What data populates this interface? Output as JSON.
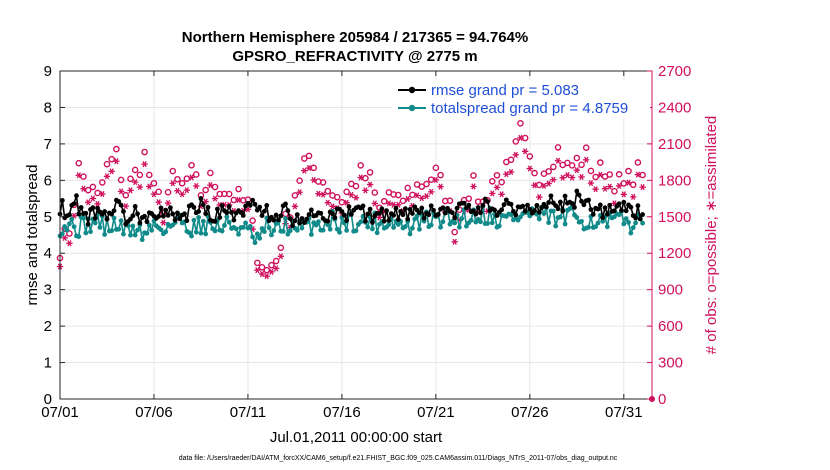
{
  "chart_data": {
    "type": "line",
    "title_line1": "Northern Hemisphere 205984 / 217365 = 94.764%",
    "title_line2": "GPSRO_REFRACTIVITY @ 2775 m",
    "xlabel": "Jul.01,2011 00:00:00 start",
    "ylabel_left": "rmse and totalspread",
    "ylabel_right": "# of obs: o=possible; ∗=assimilated",
    "footer": "data file: /Users/raeder/DAI/ATM_forcXX/CAM6_setup/f.e21.FHIST_BGC.f09_025.CAM6assim.011/Diags_NTrS_2011-07/obs_diag_output.nc",
    "xlim": [
      0,
      31.5
    ],
    "ylim_left": [
      0,
      9
    ],
    "ylim_right": [
      0,
      2700
    ],
    "x_ticks": [
      0,
      5,
      10,
      15,
      20,
      25,
      30
    ],
    "x_tick_labels": [
      "07/01",
      "07/06",
      "07/11",
      "07/16",
      "07/21",
      "07/26",
      "07/31"
    ],
    "y_ticks_left": [
      0,
      1,
      2,
      3,
      4,
      5,
      6,
      7,
      8,
      9
    ],
    "y_tick_labels_left": [
      "0",
      "1",
      "2",
      "3",
      "4",
      "5",
      "6",
      "7",
      "8",
      "9"
    ],
    "y_ticks_right": [
      0,
      300,
      600,
      900,
      1200,
      1500,
      1800,
      2100,
      2400,
      2700
    ],
    "y_tick_labels_right": [
      "0",
      "300",
      "600",
      "900",
      "1200",
      "1500",
      "1800",
      "2100",
      "2400",
      "2700"
    ],
    "grid": true,
    "legend_position": "top-right",
    "series": [
      {
        "name": "rmse grand pr = 5.083",
        "color": "#000000",
        "axis": "left",
        "x_start": 0,
        "x_step": 0.125,
        "keypoints": [
          [
            0,
            5.3
          ],
          [
            0.4,
            5.1
          ],
          [
            0.8,
            5.4
          ],
          [
            1.2,
            5.2
          ],
          [
            1.5,
            5.0
          ],
          [
            2,
            5.2
          ],
          [
            2.5,
            5.1
          ],
          [
            3,
            5.3
          ],
          [
            3.5,
            5.0
          ],
          [
            4,
            5.1
          ],
          [
            4.5,
            5.0
          ],
          [
            5,
            5.2
          ],
          [
            5.5,
            5.0
          ],
          [
            6,
            5.1
          ],
          [
            6.5,
            5.0
          ],
          [
            7,
            5.2
          ],
          [
            7.5,
            5.3
          ],
          [
            8,
            5.0
          ],
          [
            8.5,
            5.1
          ],
          [
            9,
            5.2
          ],
          [
            9.5,
            5.0
          ],
          [
            10,
            5.2
          ],
          [
            10.5,
            5.4
          ],
          [
            11,
            5.1
          ],
          [
            11.5,
            5.0
          ],
          [
            12,
            5.2
          ],
          [
            12.5,
            4.9
          ],
          [
            13,
            5.0
          ],
          [
            13.5,
            5.1
          ],
          [
            14,
            5.0
          ],
          [
            14.5,
            5.1
          ],
          [
            15,
            5.0
          ],
          [
            15.5,
            5.1
          ],
          [
            16,
            5.2
          ],
          [
            16.5,
            5.0
          ],
          [
            17,
            5.1
          ],
          [
            17.5,
            5.0
          ],
          [
            18,
            5.1
          ],
          [
            18.5,
            5.0
          ],
          [
            19,
            5.1
          ],
          [
            19.5,
            5.0
          ],
          [
            20,
            5.2
          ],
          [
            20.5,
            5.1
          ],
          [
            21,
            5.1
          ],
          [
            21.5,
            5.2
          ],
          [
            22,
            5.2
          ],
          [
            22.5,
            5.3
          ],
          [
            23,
            5.2
          ],
          [
            23.5,
            5.3
          ],
          [
            24,
            5.2
          ],
          [
            24.5,
            5.3
          ],
          [
            25,
            5.2
          ],
          [
            25.5,
            5.3
          ],
          [
            26,
            5.4
          ],
          [
            26.5,
            5.3
          ],
          [
            27,
            5.4
          ],
          [
            27.5,
            5.5
          ],
          [
            28,
            5.3
          ],
          [
            28.5,
            5.2
          ],
          [
            29,
            5.1
          ],
          [
            29.5,
            5.2
          ],
          [
            30,
            5.3
          ],
          [
            30.5,
            5.1
          ],
          [
            31,
            5.1
          ]
        ],
        "mean": 5.083
      },
      {
        "name": "totalspread grand pr = 4.8759",
        "color": "#118a8a",
        "axis": "left",
        "x_start": 0,
        "x_step": 0.125,
        "keypoints": [
          [
            0,
            4.75
          ],
          [
            0.5,
            4.8
          ],
          [
            1,
            4.7
          ],
          [
            1.5,
            4.8
          ],
          [
            2,
            4.9
          ],
          [
            2.5,
            4.7
          ],
          [
            3,
            4.8
          ],
          [
            3.5,
            4.6
          ],
          [
            4,
            4.7
          ],
          [
            4.5,
            4.5
          ],
          [
            5,
            4.8
          ],
          [
            5.5,
            4.7
          ],
          [
            6,
            4.8
          ],
          [
            6.5,
            4.9
          ],
          [
            7,
            4.7
          ],
          [
            7.5,
            4.8
          ],
          [
            8,
            4.8
          ],
          [
            8.5,
            4.7
          ],
          [
            9,
            4.8
          ],
          [
            9.5,
            4.7
          ],
          [
            10,
            4.6
          ],
          [
            10.5,
            4.3
          ],
          [
            11,
            4.7
          ],
          [
            11.5,
            4.6
          ],
          [
            12,
            4.8
          ],
          [
            12.5,
            4.6
          ],
          [
            13,
            4.7
          ],
          [
            13.5,
            4.8
          ],
          [
            14,
            4.8
          ],
          [
            14.5,
            4.9
          ],
          [
            15,
            4.8
          ],
          [
            15.5,
            4.9
          ],
          [
            16,
            4.8
          ],
          [
            16.5,
            4.9
          ],
          [
            17,
            4.8
          ],
          [
            17.5,
            4.9
          ],
          [
            18,
            4.8
          ],
          [
            18.5,
            4.7
          ],
          [
            19,
            4.8
          ],
          [
            19.5,
            4.9
          ],
          [
            20,
            4.9
          ],
          [
            20.5,
            5.0
          ],
          [
            21,
            4.9
          ],
          [
            21.5,
            5.0
          ],
          [
            22,
            5.0
          ],
          [
            22.5,
            5.1
          ],
          [
            23,
            5.0
          ],
          [
            23.5,
            4.9
          ],
          [
            24,
            5.0
          ],
          [
            24.5,
            5.0
          ],
          [
            25,
            5.1
          ],
          [
            25.5,
            5.0
          ],
          [
            26,
            5.0
          ],
          [
            26.5,
            4.9
          ],
          [
            27,
            5.0
          ],
          [
            27.5,
            5.0
          ],
          [
            28,
            4.9
          ],
          [
            28.5,
            4.9
          ],
          [
            29,
            4.8
          ],
          [
            29.5,
            4.9
          ],
          [
            30,
            4.9
          ],
          [
            30.5,
            4.8
          ],
          [
            31,
            4.8
          ]
        ],
        "mean": 4.8759
      },
      {
        "name": "possible",
        "marker": "o",
        "color": "#d0105c",
        "axis": "right",
        "x_start": 0,
        "x_step": 0.25,
        "keypoints": [
          [
            0,
            1250
          ],
          [
            0.5,
            1400
          ],
          [
            1,
            1900
          ],
          [
            1.5,
            1750
          ],
          [
            2,
            1650
          ],
          [
            2.5,
            1900
          ],
          [
            3,
            2000
          ],
          [
            3.5,
            1700
          ],
          [
            4,
            1850
          ],
          [
            4.5,
            2000
          ],
          [
            5,
            1700
          ],
          [
            5.5,
            1600
          ],
          [
            6,
            1800
          ],
          [
            6.5,
            1750
          ],
          [
            7,
            1850
          ],
          [
            7.5,
            1700
          ],
          [
            8,
            1800
          ],
          [
            8.5,
            1750
          ],
          [
            9,
            1700
          ],
          [
            9.5,
            1650
          ],
          [
            10,
            1600
          ],
          [
            10.5,
            1200
          ],
          [
            11,
            1050
          ],
          [
            11.5,
            1150
          ],
          [
            12,
            1450
          ],
          [
            12.5,
            1700
          ],
          [
            13,
            1950
          ],
          [
            13.5,
            1900
          ],
          [
            14,
            1800
          ],
          [
            14.5,
            1700
          ],
          [
            15,
            1650
          ],
          [
            15.5,
            1750
          ],
          [
            16,
            1850
          ],
          [
            16.5,
            1800
          ],
          [
            17,
            1550
          ],
          [
            17.5,
            1700
          ],
          [
            18,
            1600
          ],
          [
            18.5,
            1700
          ],
          [
            19,
            1750
          ],
          [
            19.5,
            1800
          ],
          [
            20,
            1850
          ],
          [
            20.5,
            1700
          ],
          [
            21,
            1450
          ],
          [
            21.5,
            1700
          ],
          [
            22,
            1750
          ],
          [
            22.5,
            1600
          ],
          [
            23,
            1800
          ],
          [
            23.5,
            1850
          ],
          [
            24,
            1900
          ],
          [
            24.5,
            2200
          ],
          [
            25,
            1950
          ],
          [
            25.5,
            1850
          ],
          [
            26,
            1950
          ],
          [
            26.5,
            2050
          ],
          [
            27,
            1900
          ],
          [
            27.5,
            1950
          ],
          [
            28,
            2000
          ],
          [
            28.5,
            1850
          ],
          [
            29,
            1900
          ],
          [
            29.5,
            1800
          ],
          [
            30,
            1750
          ],
          [
            30.5,
            1850
          ],
          [
            31,
            1900
          ]
        ]
      },
      {
        "name": "assimilated",
        "marker": "*",
        "color": "#d0105c",
        "axis": "right",
        "x_start": 0,
        "x_step": 0.25,
        "keypoints": [
          [
            0,
            1180
          ],
          [
            0.5,
            1320
          ],
          [
            1,
            1800
          ],
          [
            1.5,
            1650
          ],
          [
            2,
            1560
          ],
          [
            2.5,
            1800
          ],
          [
            3,
            1900
          ],
          [
            3.5,
            1610
          ],
          [
            4,
            1750
          ],
          [
            4.5,
            1900
          ],
          [
            5,
            1610
          ],
          [
            5.5,
            1520
          ],
          [
            6,
            1700
          ],
          [
            6.5,
            1660
          ],
          [
            7,
            1750
          ],
          [
            7.5,
            1610
          ],
          [
            8,
            1700
          ],
          [
            8.5,
            1660
          ],
          [
            9,
            1610
          ],
          [
            9.5,
            1560
          ],
          [
            10,
            1520
          ],
          [
            10.5,
            1140
          ],
          [
            11,
            1000
          ],
          [
            11.5,
            1090
          ],
          [
            12,
            1370
          ],
          [
            12.5,
            1610
          ],
          [
            13,
            1850
          ],
          [
            13.5,
            1800
          ],
          [
            14,
            1700
          ],
          [
            14.5,
            1610
          ],
          [
            15,
            1560
          ],
          [
            15.5,
            1660
          ],
          [
            16,
            1750
          ],
          [
            16.5,
            1700
          ],
          [
            17,
            1470
          ],
          [
            17.5,
            1610
          ],
          [
            18,
            1520
          ],
          [
            18.5,
            1610
          ],
          [
            19,
            1660
          ],
          [
            19.5,
            1700
          ],
          [
            20,
            1750
          ],
          [
            20.5,
            1610
          ],
          [
            21,
            1370
          ],
          [
            21.5,
            1610
          ],
          [
            22,
            1660
          ],
          [
            22.5,
            1520
          ],
          [
            23,
            1700
          ],
          [
            23.5,
            1750
          ],
          [
            24,
            1800
          ],
          [
            24.5,
            2080
          ],
          [
            25,
            1850
          ],
          [
            25.5,
            1750
          ],
          [
            26,
            1850
          ],
          [
            26.5,
            1940
          ],
          [
            27,
            1800
          ],
          [
            27.5,
            1850
          ],
          [
            28,
            1900
          ],
          [
            28.5,
            1750
          ],
          [
            29,
            1800
          ],
          [
            29.5,
            1700
          ],
          [
            30,
            1660
          ],
          [
            30.5,
            1750
          ],
          [
            31,
            1800
          ]
        ]
      }
    ]
  }
}
